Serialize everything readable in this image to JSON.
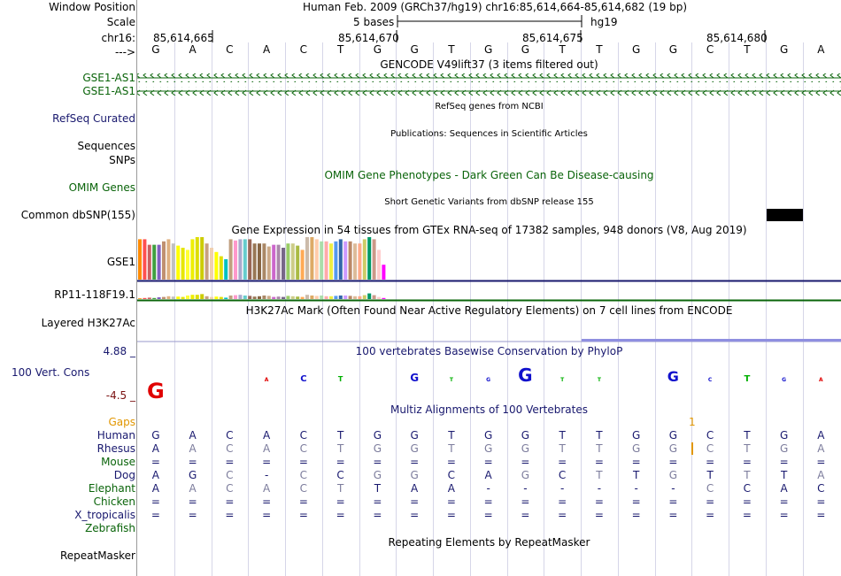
{
  "header": {
    "window_position_label": "Window Position",
    "scale_label": "Scale",
    "chrom_label": "chr16:",
    "arrow_label": "--->",
    "window_title": "Human Feb. 2009 (GRCh37/hg19)   chr16:85,614,664-85,614,682 (19 bp)",
    "scale_text": "5 bases",
    "scale_db": "hg19",
    "ruler_ticks": [
      "85,614,665",
      "85,614,670",
      "85,614,675",
      "85,614,680"
    ]
  },
  "dna_sequence": [
    "G",
    "A",
    "C",
    "A",
    "C",
    "T",
    "G",
    "G",
    "T",
    "G",
    "G",
    "T",
    "T",
    "G",
    "G",
    "C",
    "T",
    "G",
    "A"
  ],
  "tracks": {
    "gencode": {
      "title": "GENCODE V49lift37 (3 items filtered out)",
      "items": [
        "GSE1-AS1",
        "GSE1-AS1"
      ]
    },
    "refseq": {
      "label": "RefSeq Curated",
      "title": "RefSeq genes from NCBI"
    },
    "publications": {
      "label": "Sequences",
      "title": "Publications: Sequences in Scientific Articles"
    },
    "snps": {
      "label": "SNPs"
    },
    "omim": {
      "title": "OMIM Gene Phenotypes - Dark Green Can Be Disease-causing",
      "label": "OMIM Genes"
    },
    "dbsnp": {
      "title": "Short Genetic Variants from dbSNP release 155",
      "label": "Common dbSNP(155)"
    },
    "gtex": {
      "title": "Gene Expression in 54 tissues from GTEx RNA-seq of 17382 samples, 948 donors (V8, Aug 2019)",
      "gene1": "GSE1",
      "gene2": "RP11-118F19.1"
    },
    "h3k27ac": {
      "title": "H3K27Ac Mark (Often Found Near Active Regulatory Elements) on 7 cell lines from ENCODE",
      "label": "Layered H3K27Ac"
    },
    "phylop": {
      "title": "100 vertebrates Basewise Conservation by PhyloP",
      "label": "100 Vert. Cons",
      "max": "4.88 _",
      "min": "-4.5 _"
    },
    "multiz": {
      "title": "Multiz Alignments of 100 Vertebrates",
      "gaps_label": "Gaps",
      "gap_mark": "1"
    },
    "repeatmasker": {
      "title": "Repeating Elements by RepeatMasker",
      "label": "RepeatMasker"
    }
  },
  "colors": {
    "gene_green": "#0a640a",
    "navy": "#18186e",
    "orange": "#e19600",
    "gray_base": "#7c7c9c",
    "maroon": "#7a1010"
  },
  "alignment": [
    {
      "species": "Human",
      "color": "#18186e",
      "bases": [
        "G",
        "A",
        "C",
        "A",
        "C",
        "T",
        "G",
        "G",
        "T",
        "G",
        "G",
        "T",
        "T",
        "G",
        "G",
        "C",
        "T",
        "G",
        "A"
      ]
    },
    {
      "species": "Rhesus",
      "color": "#18186e",
      "bases": [
        "A",
        "A",
        "C",
        "A",
        "C",
        "T",
        "G",
        "G",
        "T",
        "G",
        "G",
        "T",
        "T",
        "G",
        "G",
        "C",
        "T",
        "G",
        "A"
      ]
    },
    {
      "species": "Mouse",
      "color": "#0a640a",
      "bases": [
        "=",
        "=",
        "=",
        "=",
        "=",
        "=",
        "=",
        "=",
        "=",
        "=",
        "=",
        "=",
        "=",
        "=",
        "=",
        "=",
        "=",
        "=",
        "="
      ]
    },
    {
      "species": "Dog",
      "color": "#18186e",
      "bases": [
        "A",
        "G",
        "C",
        "-",
        "C",
        "C",
        "G",
        "G",
        "C",
        "A",
        "G",
        "C",
        "T",
        "T",
        "G",
        "T",
        "T",
        "T",
        "A"
      ]
    },
    {
      "species": "Elephant",
      "color": "#0a640a",
      "bases": [
        "A",
        "A",
        "C",
        "A",
        "C",
        "T",
        "T",
        "A",
        "A",
        "-",
        "-",
        "-",
        "-",
        "-",
        "-",
        "C",
        "C",
        "A",
        "C"
      ]
    },
    {
      "species": "Chicken",
      "color": "#0a640a",
      "bases": [
        "=",
        "=",
        "=",
        "=",
        "=",
        "=",
        "=",
        "=",
        "=",
        "=",
        "=",
        "=",
        "=",
        "=",
        "=",
        "=",
        "=",
        "=",
        "="
      ]
    },
    {
      "species": "X_tropicalis",
      "color": "#18186e",
      "bases": [
        "=",
        "=",
        "=",
        "=",
        "=",
        "=",
        "=",
        "=",
        "=",
        "=",
        "=",
        "=",
        "=",
        "=",
        "=",
        "=",
        "=",
        "=",
        "="
      ]
    },
    {
      "species": "Zebrafish",
      "color": "#0a640a",
      "bases": []
    }
  ]
}
